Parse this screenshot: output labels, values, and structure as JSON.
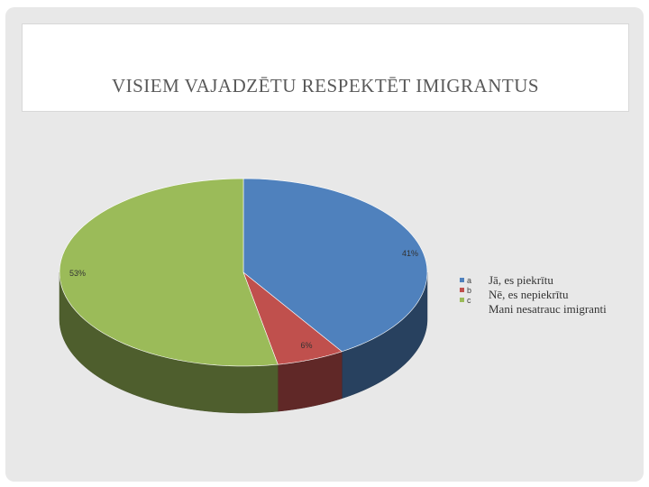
{
  "title": "VISIEM VAJADZĒTU RESPEKTĒT IMIGRANTUS",
  "legend": {
    "keys": [
      "a",
      "b",
      "c"
    ],
    "descriptions": [
      "Jā, es piekrītu",
      "Nē, es nepiekrītu",
      "Mani nesatrauc imigranti"
    ]
  },
  "colors": {
    "a": "#4f81bd",
    "b": "#c0504d",
    "c": "#9bbb59"
  },
  "chart_data": {
    "type": "pie",
    "title": "VISIEM VAJADZĒTU RESPEKTĒT IMIGRANTUS",
    "categories": [
      "a",
      "b",
      "c"
    ],
    "values": [
      41,
      6,
      53
    ],
    "data_labels": [
      "41%",
      "6%",
      "53%"
    ],
    "style": "3d"
  }
}
